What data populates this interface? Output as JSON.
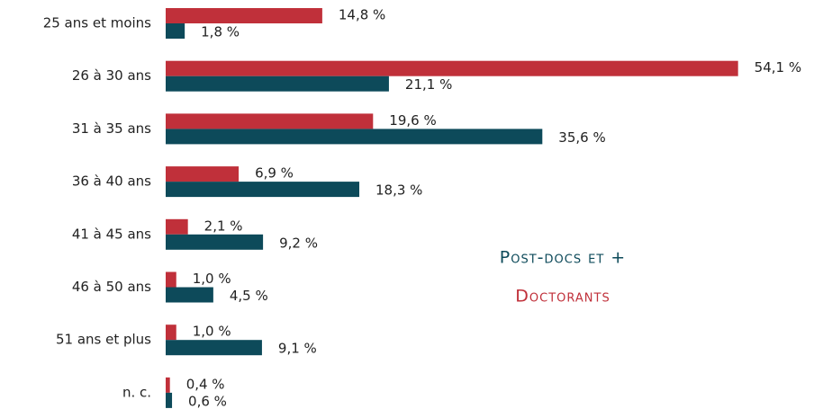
{
  "chart_data": {
    "type": "bar",
    "orientation": "horizontal",
    "categories": [
      "25 ans et moins",
      "26 à 30 ans",
      "31 à 35 ans",
      "36 à 40 ans",
      "41 à 45 ans",
      "46 à 50 ans",
      "51 ans et plus",
      "n. c."
    ],
    "series": [
      {
        "name": "Doctorants",
        "color": "#c0303a",
        "values": [
          14.8,
          54.1,
          19.6,
          6.9,
          2.1,
          1.0,
          1.0,
          0.4
        ],
        "value_labels": [
          "14,8 %",
          "54,1 %",
          "19,6 %",
          "6,9 %",
          "2,1 %",
          "1,0 %",
          "1,0 %",
          "0,4 %"
        ]
      },
      {
        "name": "Post-docs et +",
        "color": "#0d4a5a",
        "values": [
          1.8,
          21.1,
          35.6,
          18.3,
          9.2,
          4.5,
          9.1,
          0.6
        ],
        "value_labels": [
          "1,8 %",
          "21,1 %",
          "35,6 %",
          "18,3 %",
          "9,2 %",
          "4,5 %",
          "9,1 %",
          "0,6 %"
        ]
      }
    ]
  }
}
